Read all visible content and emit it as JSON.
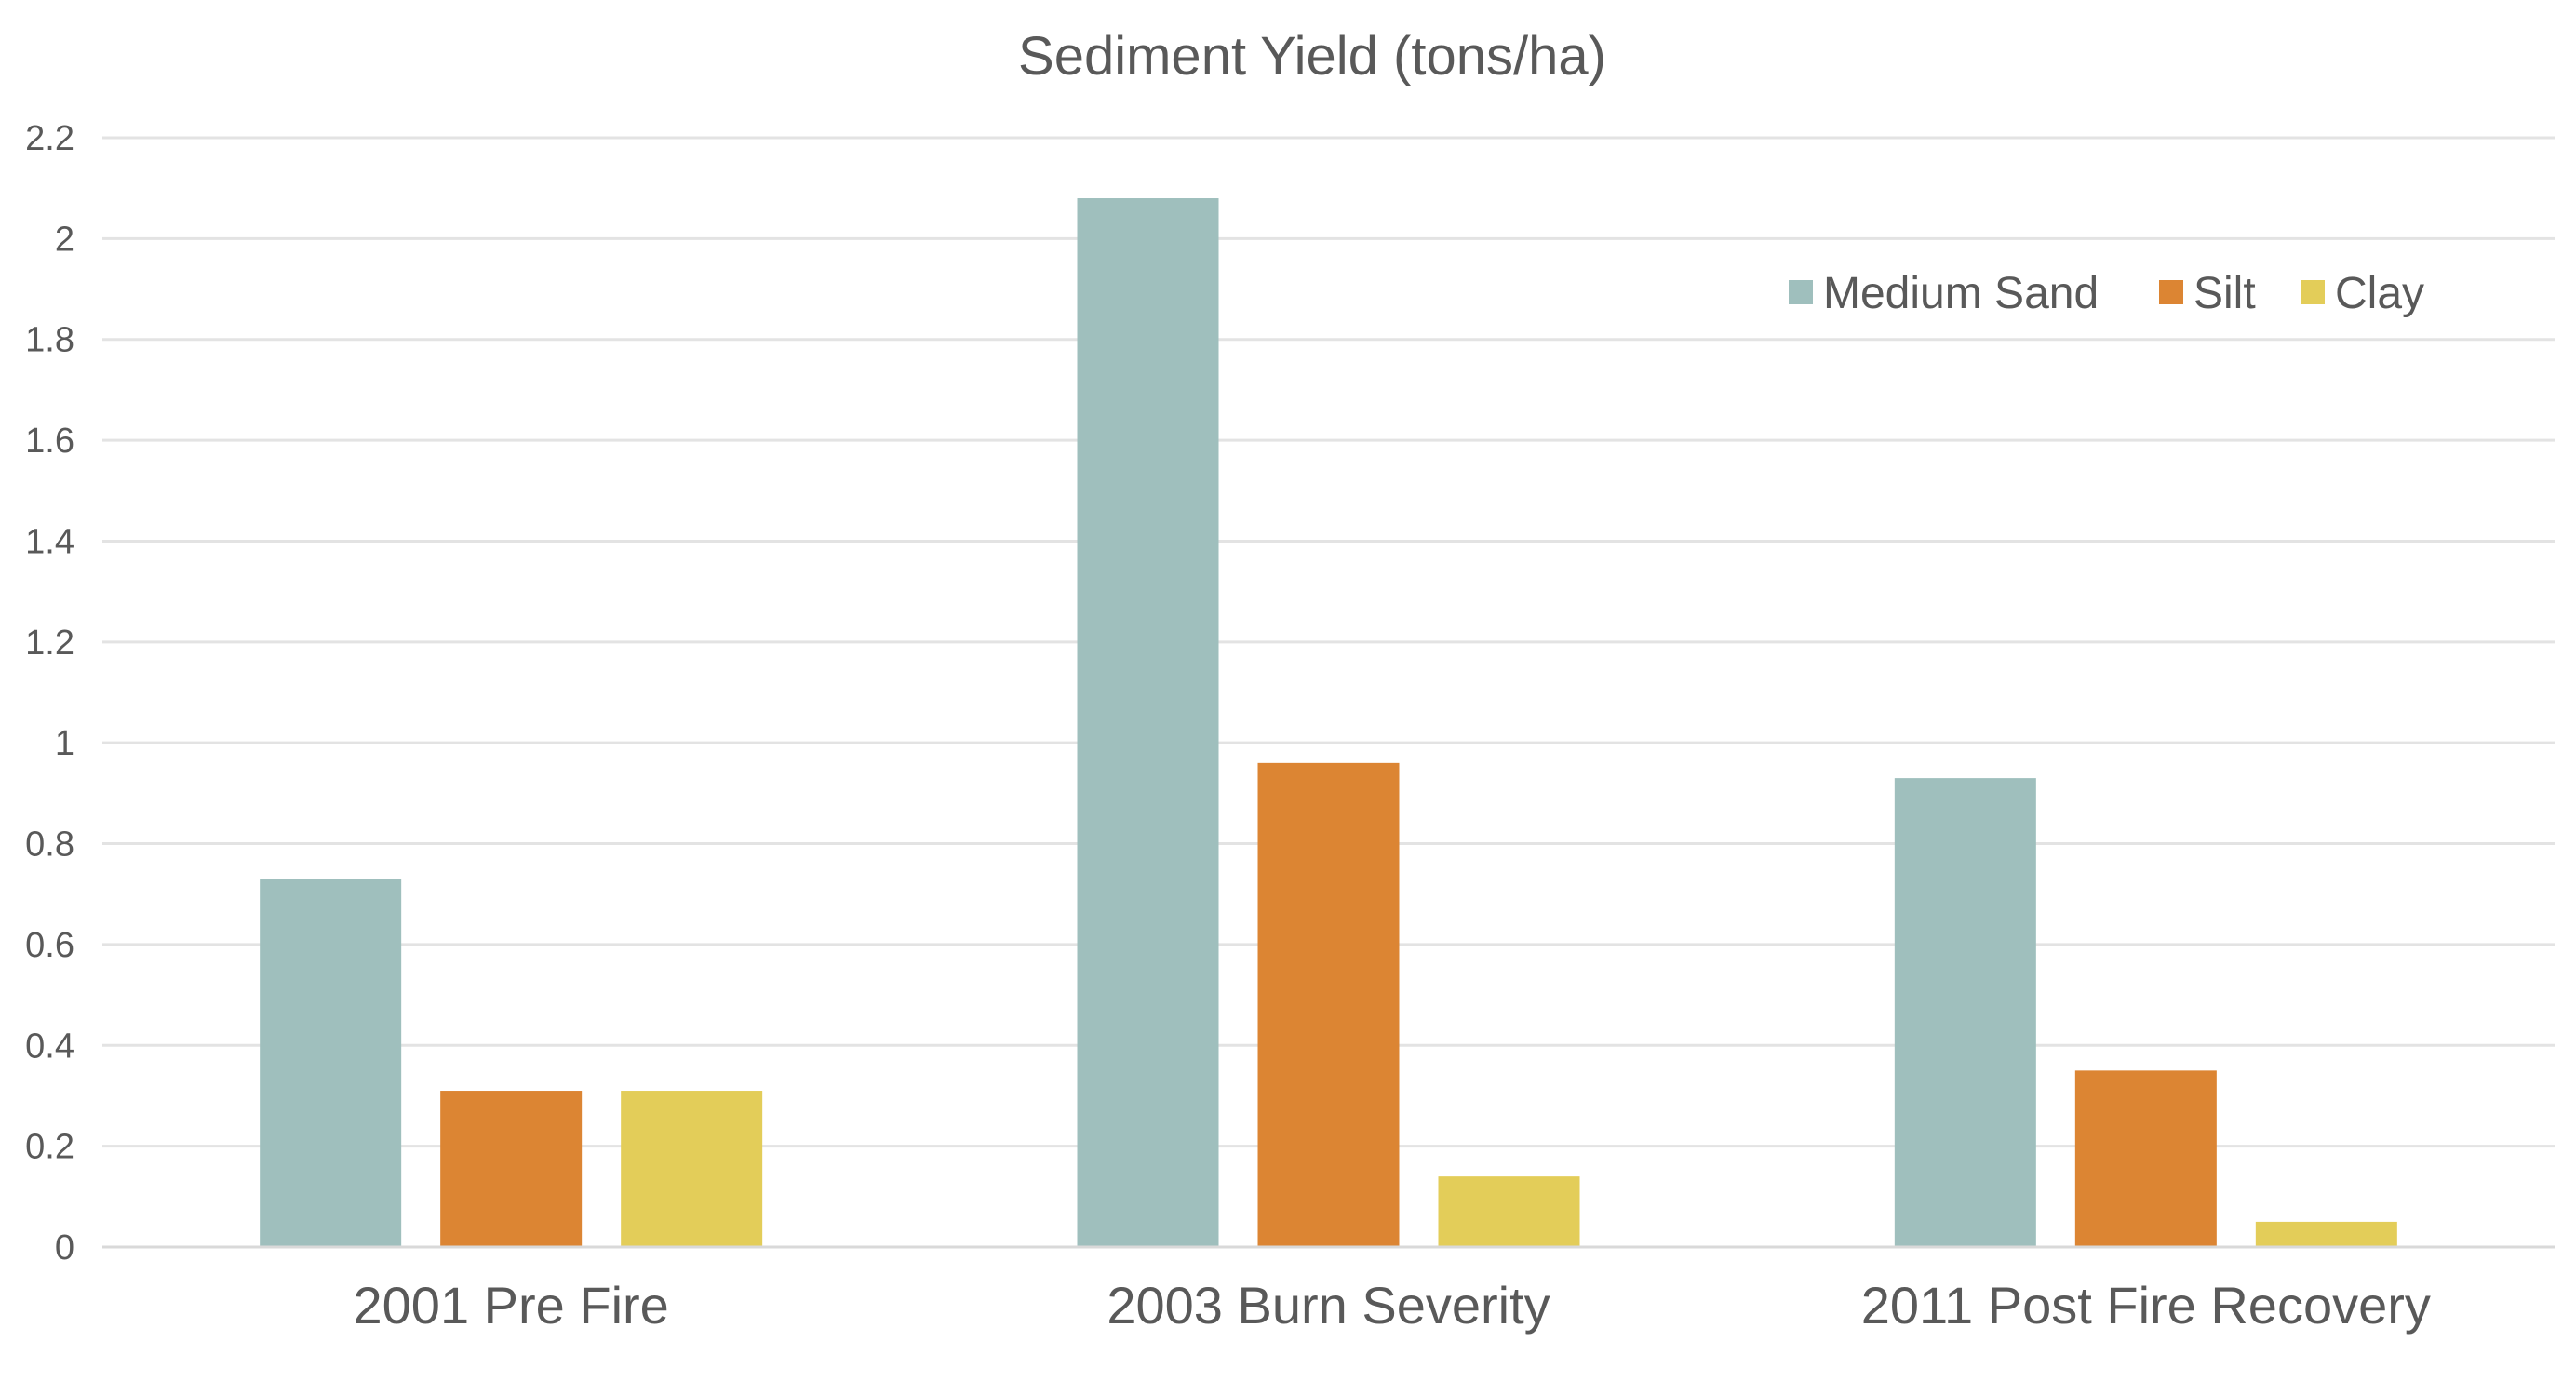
{
  "chart_data": {
    "type": "bar",
    "title": "Sediment Yield (tons/ha)",
    "categories": [
      "2001 Pre Fire",
      "2003 Burn Severity",
      "2011 Post Fire Recovery"
    ],
    "series": [
      {
        "name": "Medium Sand",
        "color": "#9fbfbd",
        "values": [
          0.73,
          2.08,
          0.93
        ]
      },
      {
        "name": "Silt",
        "color": "#dc8533",
        "values": [
          0.31,
          0.96,
          0.35
        ]
      },
      {
        "name": "Clay",
        "color": "#e3cd59",
        "values": [
          0.31,
          0.14,
          0.05
        ]
      }
    ],
    "yticks": [
      "0",
      "0.2",
      "0.4",
      "0.6",
      "0.8",
      "1",
      "1.2",
      "1.4",
      "1.6",
      "1.8",
      "2",
      "2.2"
    ],
    "ylim": [
      0,
      2.2
    ],
    "grid": true,
    "legend_position": "top-right",
    "xlabel": "",
    "ylabel": ""
  }
}
